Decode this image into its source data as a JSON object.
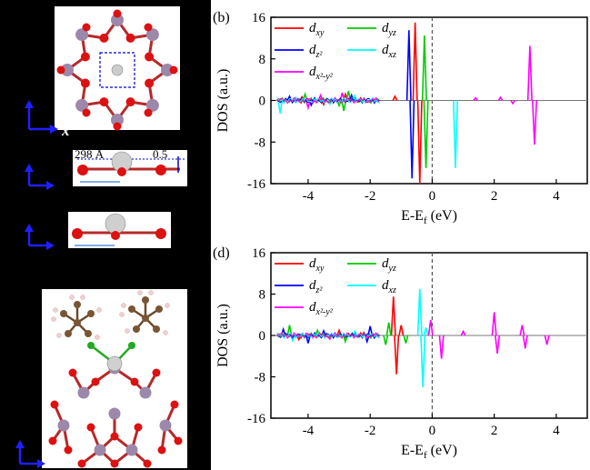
{
  "panels": [
    {
      "label": "(b)",
      "ylabel": "DOS (a.u.)",
      "xlabel_main": "E-E",
      "xlabel_sub": "f",
      "xlabel_unit": " (eV)"
    },
    {
      "label": "(d)",
      "ylabel": "DOS (a.u.)",
      "xlabel_main": "E-E",
      "xlabel_sub": "f",
      "xlabel_unit": " (eV)"
    }
  ],
  "legend": [
    {
      "base": "d",
      "sub": "xy",
      "color": "#ff0000"
    },
    {
      "base": "d",
      "sub": "yz",
      "color": "#00cc00"
    },
    {
      "base": "d",
      "sub": "z²",
      "color": "#0000ff"
    },
    {
      "base": "d",
      "sub": "xz",
      "color": "#00ffff"
    },
    {
      "base": "d",
      "sub": "x²-y²",
      "color": "#ff00ff"
    }
  ],
  "structures": {
    "axis_label": "x",
    "dim_left": "298 Å",
    "dim_right": "0.5"
  },
  "chart_data": [
    {
      "type": "line",
      "title": "",
      "xlabel": "E-Ef (eV)",
      "ylabel": "DOS (a.u.)",
      "xlim": [
        -5.2,
        5
      ],
      "ylim": [
        -16,
        16
      ],
      "xticks": [
        -4,
        -2,
        0,
        2,
        4
      ],
      "yticks": [
        -16,
        -8,
        0,
        8,
        16
      ],
      "fermi_line": 0,
      "spikes": {
        "dxy": [
          [
            -0.55,
            15
          ],
          [
            -0.4,
            -16
          ],
          [
            -1.2,
            0.8
          ],
          [
            -2.8,
            1.2
          ],
          [
            -3.5,
            -0.8
          ],
          [
            -4.2,
            0.7
          ]
        ],
        "dyz": [
          [
            -0.25,
            12.5
          ],
          [
            -0.2,
            -13
          ],
          [
            -2.7,
            1.8
          ],
          [
            -2.85,
            -2
          ],
          [
            -4.1,
            1.2
          ],
          [
            -3.0,
            -1.0
          ]
        ],
        "dz2": [
          [
            -0.75,
            13.5
          ],
          [
            -0.65,
            -15
          ],
          [
            -2.6,
            1.0
          ],
          [
            -3.9,
            -0.9
          ],
          [
            -4.6,
            0.8
          ]
        ],
        "dxz": [
          [
            0.75,
            -13
          ],
          [
            -2.5,
            0.9
          ],
          [
            -3.3,
            -0.7
          ],
          [
            -4.9,
            -2.5
          ],
          [
            -4.4,
            0.6
          ]
        ],
        "dx2y2": [
          [
            3.15,
            10.5
          ],
          [
            3.3,
            -8.5
          ],
          [
            -2.9,
            1.5
          ],
          [
            -4.0,
            -1.4
          ],
          [
            -3.6,
            1.0
          ],
          [
            2.2,
            0.6
          ],
          [
            2.6,
            -0.6
          ],
          [
            1.4,
            0.5
          ]
        ]
      }
    },
    {
      "type": "line",
      "title": "",
      "xlabel": "E-Ef (eV)",
      "ylabel": "DOS (a.u.)",
      "xlim": [
        -5.2,
        5
      ],
      "ylim": [
        -16,
        16
      ],
      "xticks": [
        -4,
        -2,
        0,
        2,
        4
      ],
      "yticks": [
        -16,
        -8,
        0,
        8,
        16
      ],
      "fermi_line": 0,
      "spikes": {
        "dxy": [
          [
            -1.25,
            7.5
          ],
          [
            -1.15,
            -7.5
          ],
          [
            -1.0,
            2.0
          ],
          [
            -3.0,
            1.0
          ],
          [
            -4.3,
            -0.8
          ],
          [
            -2.2,
            0.6
          ]
        ],
        "dyz": [
          [
            -1.4,
            2.5
          ],
          [
            -1.5,
            -1.8
          ],
          [
            -0.85,
            -1.5
          ],
          [
            -3.7,
            1.0
          ],
          [
            -4.6,
            2.0
          ],
          [
            -2.8,
            -1.2
          ]
        ],
        "dz2": [
          [
            -2.0,
            1.8
          ],
          [
            -2.1,
            -1.2
          ],
          [
            -3.5,
            0.9
          ],
          [
            -4.0,
            -1.5
          ],
          [
            -4.8,
            1.2
          ]
        ],
        "dxz": [
          [
            -0.4,
            9.0
          ],
          [
            -0.3,
            -10.0
          ],
          [
            -0.2,
            1.5
          ],
          [
            -2.5,
            0.8
          ],
          [
            -4.5,
            -1.0
          ]
        ],
        "dx2y2": [
          [
            -0.05,
            3.0
          ],
          [
            0.3,
            -4.5
          ],
          [
            2.0,
            4.5
          ],
          [
            2.1,
            -3.5
          ],
          [
            2.9,
            2.0
          ],
          [
            3.0,
            -2.5
          ],
          [
            3.7,
            -1.8
          ],
          [
            1.0,
            0.8
          ],
          [
            -3.3,
            -0.7
          ]
        ]
      }
    }
  ]
}
